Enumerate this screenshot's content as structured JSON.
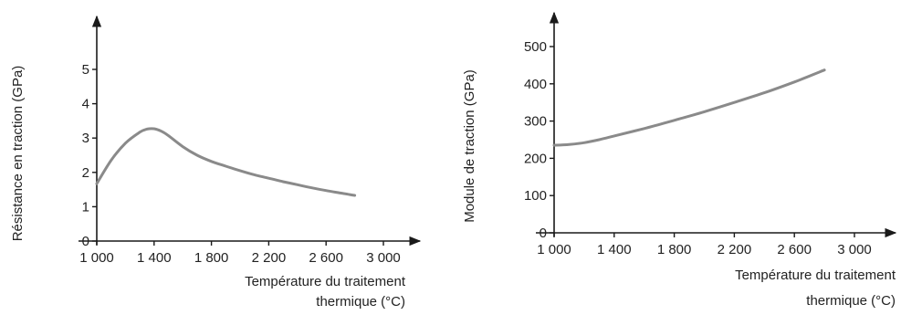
{
  "chart_data": [
    {
      "type": "line",
      "title": "",
      "ylabel": "Résistance en traction (GPa)",
      "xlabel_lines": [
        "Température du traitement",
        "thermique (°C)"
      ],
      "xticks": [
        1000,
        1400,
        1800,
        2200,
        2600,
        3000
      ],
      "xtick_labels": [
        "1 000",
        "1 400",
        "1 800",
        "2 200",
        "2 600",
        "3 000"
      ],
      "yticks": [
        0,
        1,
        2,
        3,
        4,
        5
      ],
      "ytick_labels": [
        "0",
        "1",
        "2",
        "3",
        "4",
        "5"
      ],
      "xlim": [
        1000,
        3000
      ],
      "ylim": [
        0,
        5
      ],
      "grid": false,
      "series": [
        {
          "color": "#8a8a8a",
          "x": [
            1000,
            1100,
            1200,
            1300,
            1350,
            1400,
            1450,
            1500,
            1600,
            1700,
            1800,
            1900,
            2000,
            2100,
            2200,
            2300,
            2400,
            2500,
            2600,
            2700,
            2800
          ],
          "y": [
            1.67,
            2.35,
            2.85,
            3.17,
            3.26,
            3.27,
            3.2,
            3.07,
            2.75,
            2.5,
            2.32,
            2.18,
            2.05,
            1.93,
            1.83,
            1.73,
            1.64,
            1.55,
            1.47,
            1.4,
            1.33
          ]
        }
      ]
    },
    {
      "type": "line",
      "title": "",
      "ylabel": "Module de traction (GPa)",
      "xlabel_lines": [
        "Température du traitement",
        "thermique (°C)"
      ],
      "xticks": [
        1000,
        1400,
        1800,
        2200,
        2600,
        3000
      ],
      "xtick_labels": [
        "1 000",
        "1 400",
        "1 800",
        "2 200",
        "2 600",
        "3 000"
      ],
      "yticks": [
        0,
        100,
        200,
        300,
        400,
        500
      ],
      "ytick_labels": [
        "0",
        "100",
        "200",
        "300",
        "400",
        "500"
      ],
      "xlim": [
        1000,
        3000
      ],
      "ylim": [
        0,
        500
      ],
      "grid": false,
      "series": [
        {
          "color": "#8a8a8a",
          "x": [
            1000,
            1100,
            1200,
            1300,
            1400,
            1600,
            1800,
            2000,
            2200,
            2400,
            2600,
            2800
          ],
          "y": [
            235,
            237,
            242,
            250,
            260,
            280,
            302,
            325,
            350,
            376,
            405,
            437
          ]
        }
      ]
    }
  ]
}
